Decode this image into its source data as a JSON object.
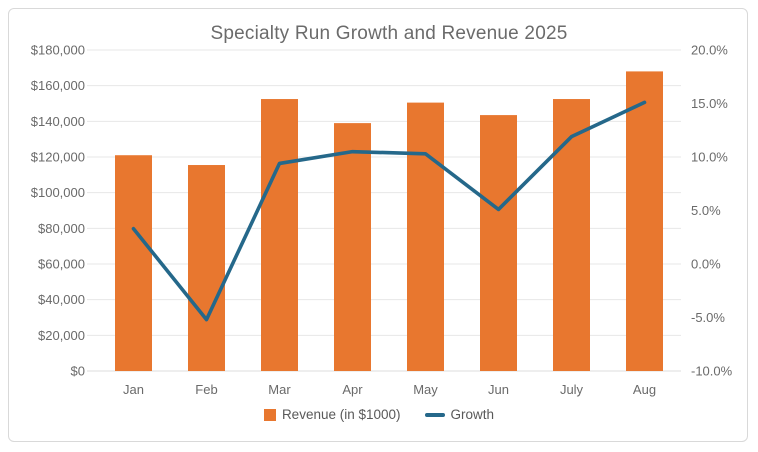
{
  "styles": {
    "background": "#ffffff",
    "card_border": "#d9d9d9",
    "gridline_color": "#e7e7e7",
    "baseline_color": "#dcdcdc",
    "revenue_color": "#e8772f",
    "growth_color": "#25688a",
    "title_color": "#6b6b6b",
    "tick_label_color": "#6a6a6a"
  },
  "chart_data": {
    "type": "combo",
    "title": "Specialty Run Growth and Revenue 2025",
    "categories": [
      "Jan",
      "Feb",
      "Mar",
      "Apr",
      "May",
      "Jun",
      "July",
      "Aug"
    ],
    "series": [
      {
        "name": "Revenue (in $1000)",
        "type": "bar",
        "axis": "left",
        "color": "#e8772f",
        "values": [
          121000,
          115500,
          152500,
          139000,
          150500,
          143500,
          152500,
          168000
        ]
      },
      {
        "name": "Growth",
        "type": "line",
        "axis": "right",
        "color": "#25688a",
        "values": [
          3.3,
          -5.2,
          9.4,
          10.5,
          10.3,
          5.1,
          11.9,
          15.1
        ]
      }
    ],
    "left_axis": {
      "min": 0,
      "max": 180000,
      "tick_step": 20000,
      "tick_labels": [
        "$0",
        "$20,000",
        "$40,000",
        "$60,000",
        "$80,000",
        "$100,000",
        "$120,000",
        "$140,000",
        "$160,000",
        "$180,000"
      ]
    },
    "right_axis": {
      "min": -10,
      "max": 20,
      "tick_step": 5,
      "tick_labels": [
        "-10.0%",
        "-5.0%",
        "0.0%",
        "5.0%",
        "10.0%",
        "15.0%",
        "20.0%"
      ]
    },
    "grid": true,
    "legend_position": "bottom"
  }
}
